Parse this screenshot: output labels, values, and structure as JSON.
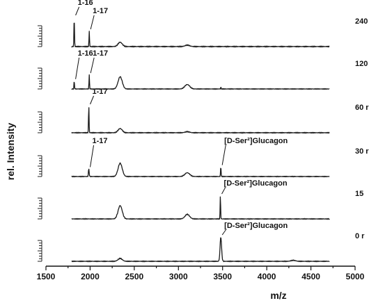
{
  "chart_data": {
    "type": "line",
    "xlabel": "m/z",
    "ylabel": "rel. Intensity",
    "xlim": [
      1500,
      5000
    ],
    "x_ticks": [
      "1500",
      "2000",
      "2500",
      "3000",
      "3500",
      "4000",
      "4500",
      "5000"
    ],
    "series": [
      {
        "name": "240",
        "peaks": [
          {
            "mz": 1820,
            "rel": 1.0,
            "width": 7
          },
          {
            "mz": 1990,
            "rel": 0.52,
            "width": 7
          },
          {
            "mz": 2340,
            "rel": 0.15,
            "width": 55
          },
          {
            "mz": 3100,
            "rel": 0.05,
            "width": 60
          }
        ],
        "annotations": [
          {
            "text": "1-16",
            "mz": 1820
          },
          {
            "text": "1-17",
            "mz": 1990
          }
        ]
      },
      {
        "name": "120",
        "peaks": [
          {
            "mz": 1820,
            "rel": 0.35,
            "width": 7
          },
          {
            "mz": 1990,
            "rel": 0.62,
            "width": 7
          },
          {
            "mz": 2340,
            "rel": 0.55,
            "width": 55
          },
          {
            "mz": 3100,
            "rel": 0.2,
            "width": 65
          },
          {
            "mz": 3480,
            "rel": 0.1,
            "width": 5
          }
        ],
        "annotations": [
          {
            "text": "1-16",
            "mz": 1820
          },
          {
            "text": "1-17",
            "mz": 1990
          }
        ]
      },
      {
        "name": "60 r",
        "peaks": [
          {
            "mz": 1985,
            "rel": 1.0,
            "width": 7
          },
          {
            "mz": 2340,
            "rel": 0.16,
            "width": 55
          },
          {
            "mz": 3100,
            "rel": 0.04,
            "width": 60
          }
        ],
        "annotations": [
          {
            "text": "1-17",
            "mz": 1985
          }
        ]
      },
      {
        "name": "30 r",
        "peaks": [
          {
            "mz": 1985,
            "rel": 0.33,
            "width": 10
          },
          {
            "mz": 2340,
            "rel": 0.6,
            "width": 55
          },
          {
            "mz": 3100,
            "rel": 0.17,
            "width": 65
          },
          {
            "mz": 3480,
            "rel": 0.42,
            "width": 8
          }
        ],
        "annotations": [
          {
            "text": "1-17",
            "mz": 1985
          },
          {
            "text": "[D-Ser²]Glucagon",
            "mz": 3480
          }
        ]
      },
      {
        "name": "15",
        "peaks": [
          {
            "mz": 2340,
            "rel": 0.58,
            "width": 55
          },
          {
            "mz": 3100,
            "rel": 0.2,
            "width": 60
          },
          {
            "mz": 3475,
            "rel": 1.0,
            "width": 7
          }
        ],
        "annotations": [
          {
            "text": "[D-Ser²]Glucagon",
            "mz": 3475
          }
        ]
      },
      {
        "name": "0 r",
        "peaks": [
          {
            "mz": 2340,
            "rel": 0.12,
            "width": 55
          },
          {
            "mz": 3480,
            "rel": 1.0,
            "width": 20
          },
          {
            "mz": 4300,
            "rel": 0.04,
            "width": 60
          }
        ],
        "annotations": [
          {
            "text": "[D-Ser²]Glucagon",
            "mz": 3480
          }
        ]
      }
    ]
  }
}
